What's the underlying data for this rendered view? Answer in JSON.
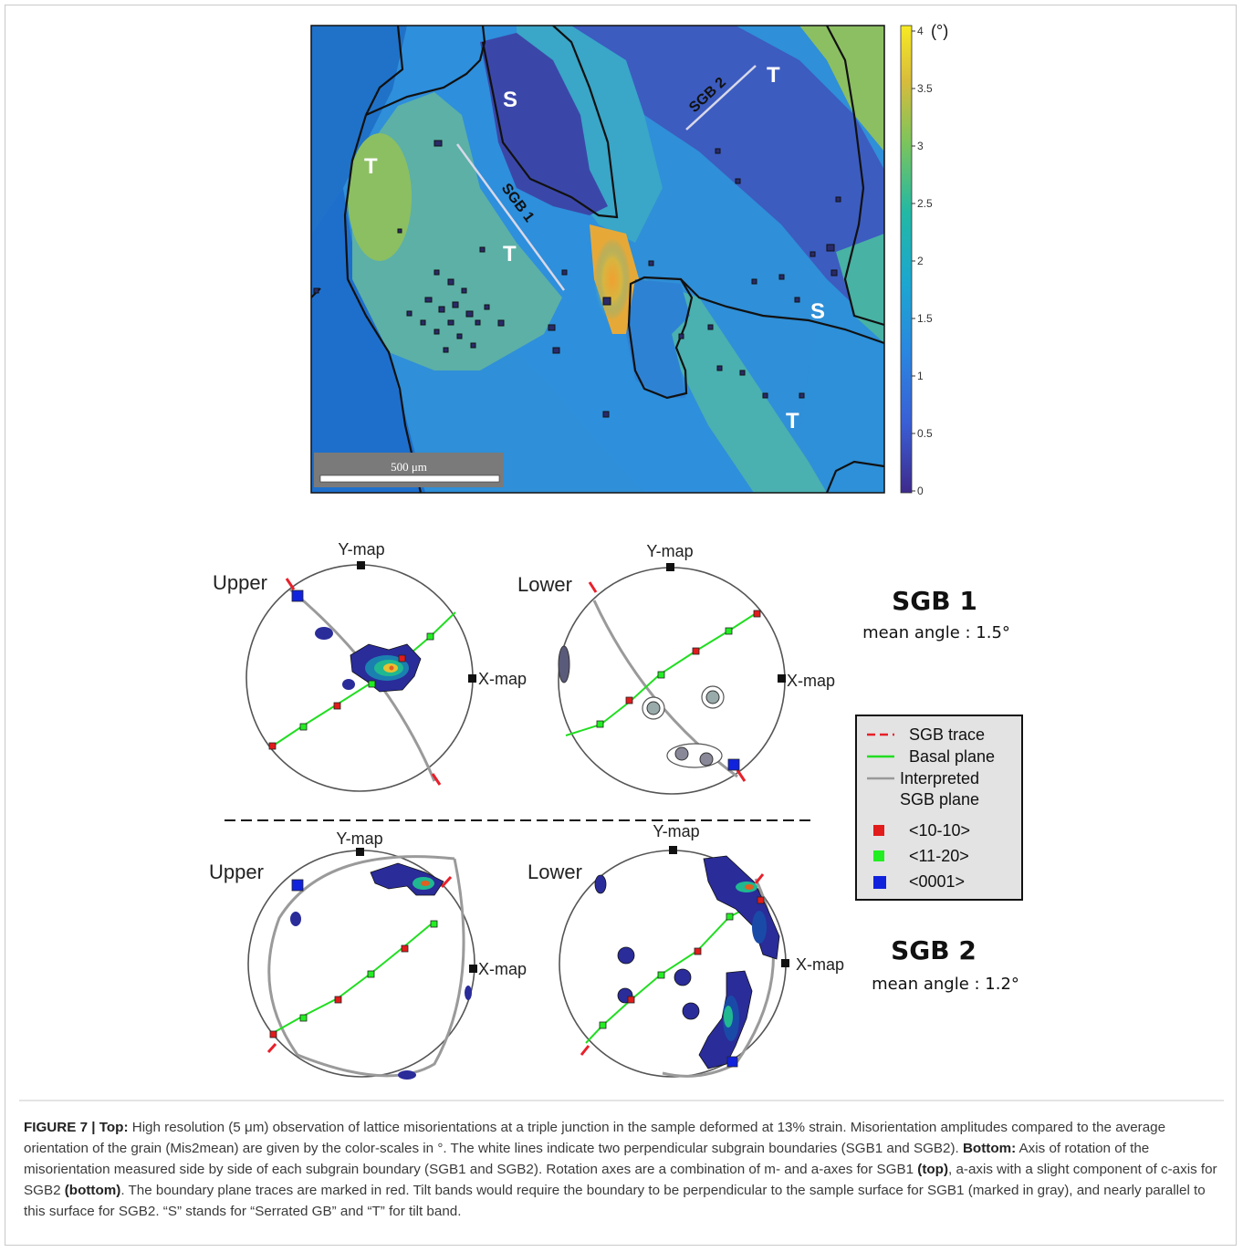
{
  "map": {
    "labels": [
      "S",
      "S",
      "T",
      "T",
      "T",
      "T",
      "SGB 1",
      "SGB 2"
    ],
    "scalebar": "500 μm",
    "colorbar_unit": "(°)",
    "colorbar_ticks": [
      "4",
      "3.5",
      "3",
      "2.5",
      "2",
      "1.5",
      "1",
      "0.5",
      "0"
    ]
  },
  "pole_figures": {
    "axis_y": "Y-map",
    "axis_x": "X-map",
    "upper": "Upper",
    "lower": "Lower",
    "sgb1": {
      "title": "SGB 1",
      "mean": "mean angle : 1.5°"
    },
    "sgb2": {
      "title": "SGB 2",
      "mean": "mean angle : 1.2°"
    }
  },
  "legend": {
    "sgb_trace": "SGB trace",
    "basal_plane": "Basal plane",
    "interpreted_1": "Interpreted",
    "interpreted_2": "SGB plane",
    "m_axis": "<10-10>",
    "a_axis": "<11-20>",
    "c_axis": "<0001>"
  },
  "colors": {
    "sgb_trace": "#e8202a",
    "basal_plane": "#22dd22",
    "sgb_plane": "#999999",
    "m_axis": "#e21b1b",
    "a_axis": "#22ee22",
    "c_axis": "#1122dd",
    "map_low": "#3a3f9a",
    "map_mid": "#1fa3c4",
    "map_high": "#f1d83a",
    "caption_highlight": "#1c5fa8"
  },
  "caption": {
    "fig_label": "FIGURE 7 | ",
    "top_label": "Top:",
    "text1": " High resolution (5 μm) observation of lattice misorientations at a triple junction in the sample deformed at 13% strain. Misorientation amplitudes compared to the average orientation of the grain (Mis2mean) are given by the color-scales in °. The white lines indicate two perpendicular subgrain boundaries (SGB1 and SGB2). ",
    "bottom_label": "Bottom:",
    "text2": " Axis of rotation of the misorientation measured side by side of each subgrain boundary (SGB1 and SGB2). Rotation axes are a combination of m- and a-axes for SGB1 ",
    "top_paren": "(top)",
    "text3": ", a-axis with a slight component of c-axis for SGB2 ",
    "bottom_paren": "(bottom)",
    "text4": ". The boundary plane traces are marked in red. Tilt bands would require the boundary to be perpendicular to the sample surface for SGB1 (marked in gray), and nearly parallel to this surface for SGB2. “S” stands for “Serrated GB” and “T” for tilt band."
  }
}
